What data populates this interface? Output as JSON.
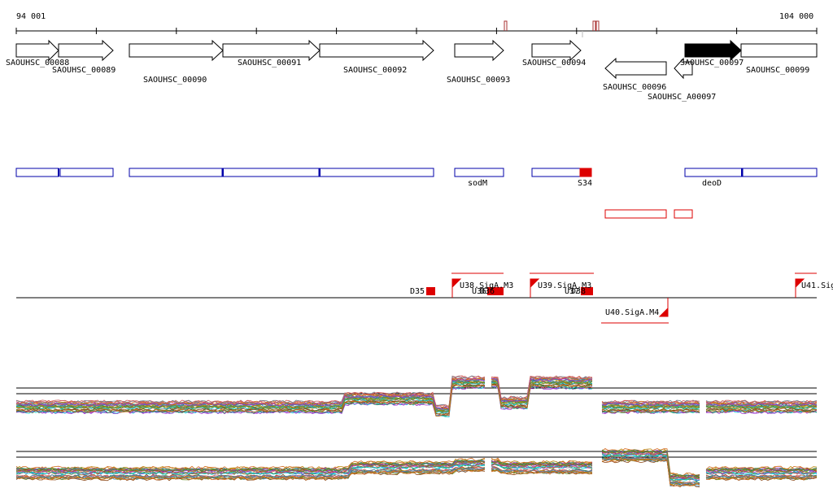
{
  "ruler": {
    "start_label": "94 001",
    "end_label": "104 000"
  },
  "genes": [
    {
      "label": "SAOUHSC_00088",
      "strand": "+",
      "filled": false
    },
    {
      "label": "SAOUHSC_00089",
      "strand": "+",
      "filled": false
    },
    {
      "label": "SAOUHSC_00090",
      "strand": "+",
      "filled": false
    },
    {
      "label": "SAOUHSC_00091",
      "strand": "+",
      "filled": false
    },
    {
      "label": "SAOUHSC_00092",
      "strand": "+",
      "filled": false
    },
    {
      "label": "SAOUHSC_00093",
      "strand": "+",
      "filled": false
    },
    {
      "label": "SAOUHSC_00094",
      "strand": "+",
      "filled": false
    },
    {
      "label": "SAOUHSC_00096",
      "strand": "-",
      "filled": false
    },
    {
      "label": "SAOUHSC_A00097",
      "strand": "-",
      "filled": false
    },
    {
      "label": "SAOUHSC_00097",
      "strand": "+",
      "filled": true
    },
    {
      "label": "SAOUHSC_00099",
      "strand": "+",
      "filled": false
    }
  ],
  "annotations": {
    "blue_labels": [
      "sodM",
      "S34",
      "deoD"
    ]
  },
  "promoters": [
    {
      "label": "D35"
    },
    {
      "label": "U38.SigA.M3"
    },
    {
      "label": "U39.SigA.M3"
    },
    {
      "label": "U40.SigA.M4"
    },
    {
      "label": "U41.Sig"
    },
    {
      "label": "U36"
    },
    {
      "label": "D36"
    },
    {
      "label": "U37"
    },
    {
      "label": "D38"
    }
  ],
  "colors": {
    "gene_outline": "#000000",
    "feature_blue": "#0000aa",
    "feature_red": "#dd0000",
    "expression_palette": [
      "#8b4513",
      "#2e8b57",
      "#b8860b",
      "#4682b4",
      "#9932cc",
      "#cd5c5c",
      "#6b8e23",
      "#d2691e",
      "#708090",
      "#00ced1"
    ]
  }
}
